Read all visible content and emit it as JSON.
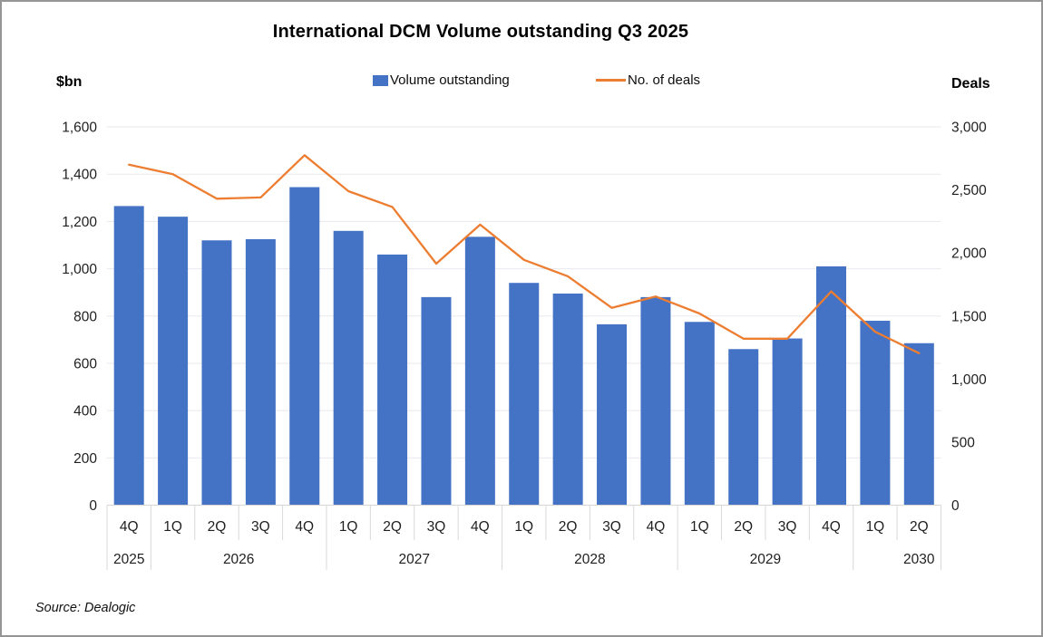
{
  "chart_data": {
    "type": "combo-bar-line",
    "title": "International DCM Volume outstanding Q3 2025",
    "categories": [
      "4Q 2025",
      "1Q 2026",
      "2Q 2026",
      "3Q 2026",
      "4Q 2026",
      "1Q 2027",
      "2Q 2027",
      "3Q 2027",
      "4Q 2027",
      "1Q 2028",
      "2Q 2028",
      "3Q 2028",
      "4Q 2028",
      "1Q 2029",
      "2Q 2029",
      "3Q 2029",
      "4Q 2029",
      "1Q 2030",
      "2Q 2030"
    ],
    "quarter_labels": [
      "4Q",
      "1Q",
      "2Q",
      "3Q",
      "4Q",
      "1Q",
      "2Q",
      "3Q",
      "4Q",
      "1Q",
      "2Q",
      "3Q",
      "4Q",
      "1Q",
      "2Q",
      "3Q",
      "4Q",
      "1Q",
      "2Q"
    ],
    "year_groups": [
      {
        "label": "2025",
        "start": 0,
        "end": 0
      },
      {
        "label": "2026",
        "start": 1,
        "end": 4
      },
      {
        "label": "2027",
        "start": 5,
        "end": 8
      },
      {
        "label": "2028",
        "start": 9,
        "end": 12
      },
      {
        "label": "2029",
        "start": 13,
        "end": 16
      },
      {
        "label": "2030",
        "start": 17,
        "end": 18,
        "label_at": 18
      }
    ],
    "series": [
      {
        "name": "Volume outstanding",
        "type": "bar",
        "axis": "left",
        "color": "#4472C4",
        "values": [
          1265,
          1220,
          1120,
          1125,
          1345,
          1160,
          1060,
          880,
          1135,
          940,
          895,
          765,
          880,
          775,
          660,
          705,
          1010,
          780,
          685
        ]
      },
      {
        "name": "No. of deals",
        "type": "line",
        "axis": "right",
        "color": "#ED7D31",
        "values": [
          2700,
          2625,
          2430,
          2440,
          2775,
          2490,
          2365,
          1915,
          2225,
          1945,
          1815,
          1565,
          1655,
          1520,
          1320,
          1320,
          1695,
          1375,
          1205
        ]
      }
    ],
    "left_axis": {
      "label": "$bn",
      "min": 0,
      "max": 1600,
      "step": 200,
      "tick_labels": [
        "0",
        "200",
        "400",
        "600",
        "800",
        "1,000",
        "1,200",
        "1,400",
        "1,600"
      ]
    },
    "right_axis": {
      "label": "Deals",
      "min": 0,
      "max": 3000,
      "step": 500,
      "tick_labels": [
        "0",
        "500",
        "1,000",
        "1,500",
        "2,000",
        "2,500",
        "3,000"
      ]
    },
    "grid": true,
    "legend_position": "top"
  },
  "source": "Source: Dealogic"
}
